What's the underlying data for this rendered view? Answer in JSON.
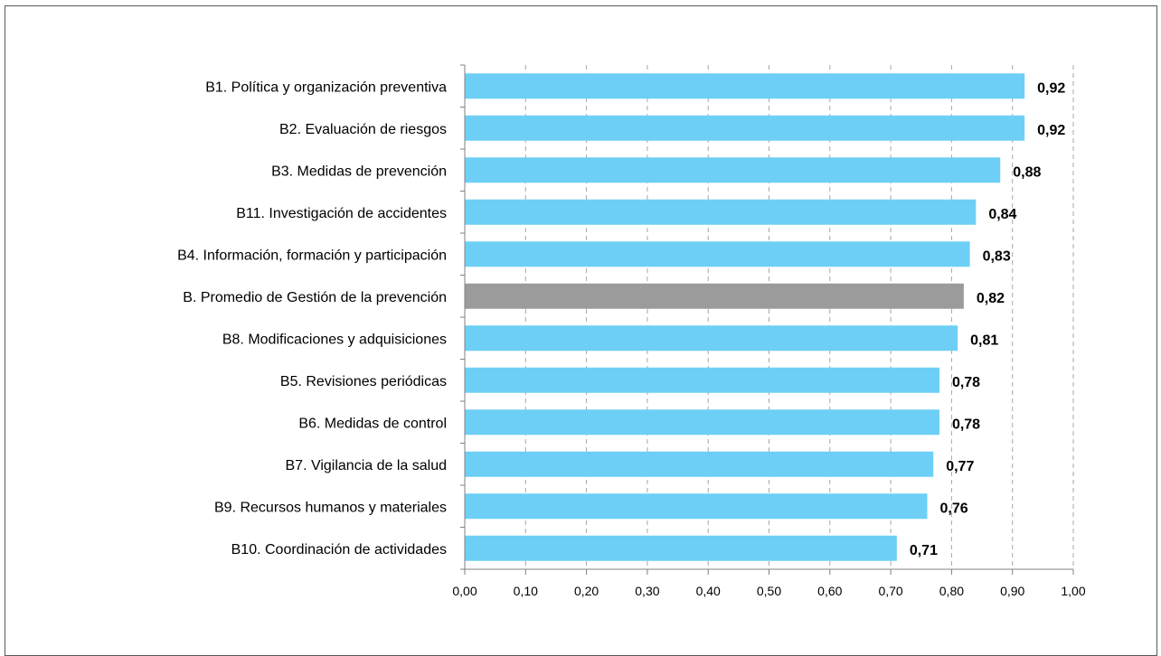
{
  "chart_data": {
    "type": "bar",
    "orientation": "horizontal",
    "title": "",
    "xlabel": "",
    "ylabel": "",
    "xlim": [
      0,
      1
    ],
    "grid": "vertical-dashed",
    "legend": "none",
    "categories": [
      "B1. Política y organización preventiva",
      "B2. Evaluación de riesgos",
      "B3. Medidas de prevención",
      "B11. Investigación de accidentes",
      "B4. Información, formación y participación",
      "B. Promedio de Gestión de la prevención",
      "B8. Modificaciones y adquisiciones",
      "B5. Revisiones periódicas",
      "B6. Medidas de control",
      "B7. Vigilancia de la salud",
      "B9. Recursos humanos y materiales",
      "B10. Coordinación de actividades"
    ],
    "values": [
      0.92,
      0.92,
      0.88,
      0.84,
      0.83,
      0.82,
      0.81,
      0.78,
      0.78,
      0.77,
      0.76,
      0.71
    ],
    "value_labels": [
      "0,92",
      "0,92",
      "0,88",
      "0,84",
      "0,83",
      "0,82",
      "0,81",
      "0,78",
      "0,78",
      "0,77",
      "0,76",
      "0,71"
    ],
    "highlight_index": 5,
    "x_ticks": [
      0,
      0.1,
      0.2,
      0.3,
      0.4,
      0.5,
      0.6,
      0.7,
      0.8,
      0.9,
      1.0
    ],
    "x_tick_labels": [
      "0,00",
      "0,10",
      "0,20",
      "0,30",
      "0,40",
      "0,50",
      "0,60",
      "0,70",
      "0,80",
      "0,90",
      "1,00"
    ],
    "colors": {
      "bar": "#6DCFF6",
      "highlight_bar": "#9B9B9B",
      "grid": "#A6A6A6",
      "axis": "#808080",
      "text": "#000000"
    }
  }
}
